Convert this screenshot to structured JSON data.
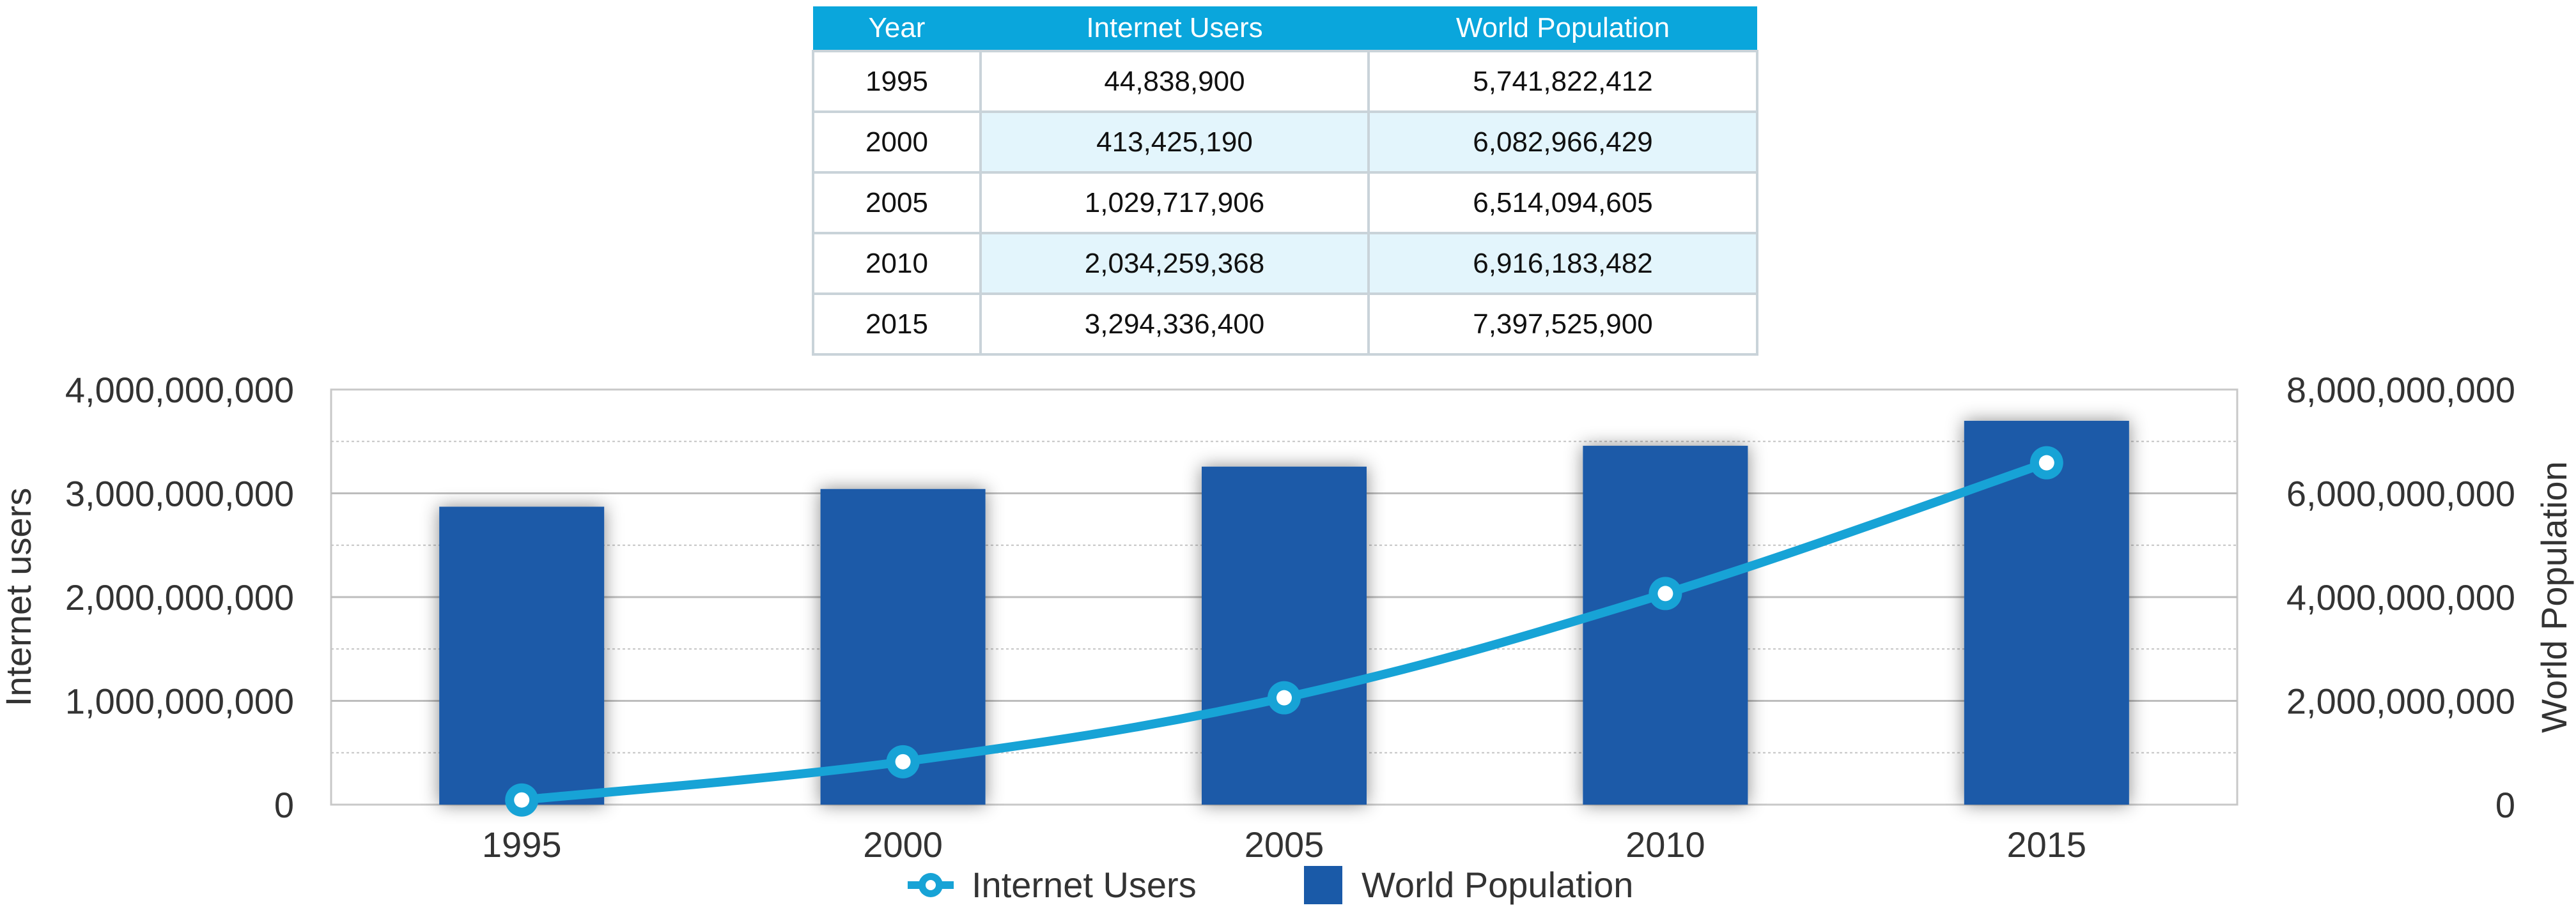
{
  "table": {
    "headers": [
      "Year",
      "Internet Users",
      "World Population"
    ],
    "rows": [
      {
        "year": "1995",
        "internet_users": "44,838,900",
        "world_population": "5,741,822,412"
      },
      {
        "year": "2000",
        "internet_users": "413,425,190",
        "world_population": "6,082,966,429"
      },
      {
        "year": "2005",
        "internet_users": "1,029,717,906",
        "world_population": "6,514,094,605"
      },
      {
        "year": "2010",
        "internet_users": "2,034,259,368",
        "world_population": "6,916,183,482"
      },
      {
        "year": "2015",
        "internet_users": "3,294,336,400",
        "world_population": "7,397,525,900"
      }
    ]
  },
  "chart_data": {
    "type": "bar",
    "categories": [
      "1995",
      "2000",
      "2005",
      "2010",
      "2015"
    ],
    "series": [
      {
        "name": "World Population",
        "type": "bar",
        "axis": "right",
        "values": [
          5741822412,
          6082966429,
          6514094605,
          6916183482,
          7397525900
        ],
        "color": "#1a5aa8"
      },
      {
        "name": "Internet Users",
        "type": "line",
        "axis": "left",
        "values": [
          44838900,
          413425190,
          1029717906,
          2034259368,
          3294336400
        ],
        "color": "#17a3d6"
      }
    ],
    "ylabel_left": "Internet users",
    "ylabel_right": "World Population",
    "ylim_left": [
      0,
      4000000000
    ],
    "ylim_right": [
      0,
      8000000000
    ],
    "yticks_left": [
      "0",
      "1,000,000,000",
      "2,000,000,000",
      "3,000,000,000",
      "4,000,000,000"
    ],
    "yticks_right": [
      "0",
      "2,000,000,000",
      "4,000,000,000",
      "6,000,000,000",
      "8,000,000,000"
    ],
    "grid": true,
    "legend_position": "bottom-center"
  }
}
